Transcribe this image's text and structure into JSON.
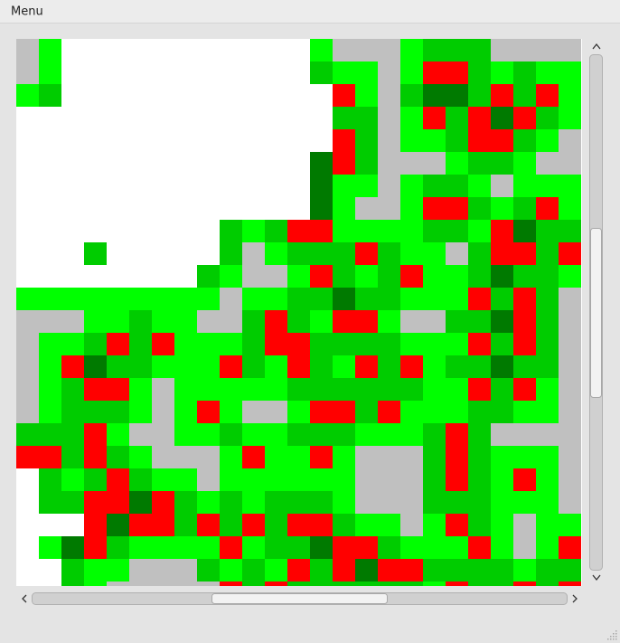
{
  "menu": {
    "label": "Menu"
  }
}
